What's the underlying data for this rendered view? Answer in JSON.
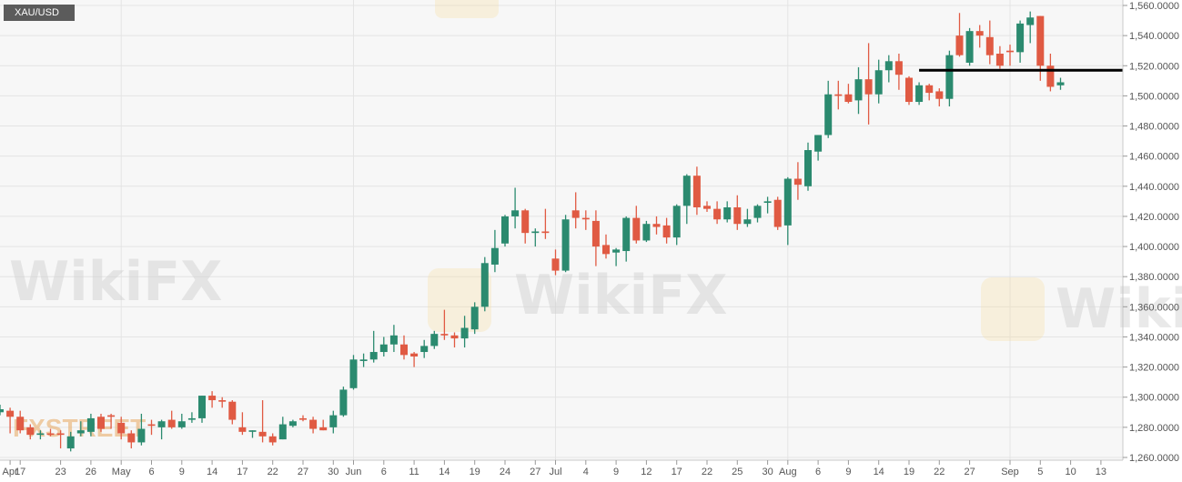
{
  "symbol": "XAU/USD",
  "watermarks": [
    "WikiFX",
    "FXSTREET"
  ],
  "colors": {
    "up": "#2b8a6f",
    "down": "#e05a43",
    "background": "#f7f7f7",
    "grid": "#e4e4e4",
    "resistance_line": "#000000"
  },
  "chart_data": {
    "type": "candlestick",
    "title": "XAU/USD",
    "ylim": [
      1260,
      1560
    ],
    "grid": true,
    "y_axis_position": "right",
    "y_ticks": [
      {
        "value": 1560,
        "label": "1,560.0000"
      },
      {
        "value": 1540,
        "label": "1,540.0000"
      },
      {
        "value": 1520,
        "label": "1,520.0000"
      },
      {
        "value": 1500,
        "label": "1,500.0000"
      },
      {
        "value": 1480,
        "label": "1,480.0000"
      },
      {
        "value": 1460,
        "label": "1,460.0000"
      },
      {
        "value": 1440,
        "label": "1,440.0000"
      },
      {
        "value": 1420,
        "label": "1,420.0000"
      },
      {
        "value": 1400,
        "label": "1,400.0000"
      },
      {
        "value": 1380,
        "label": "1,380.0000"
      },
      {
        "value": 1360,
        "label": "1,360.0000"
      },
      {
        "value": 1340,
        "label": "1,340.0000"
      },
      {
        "value": 1320,
        "label": "1,320.0000"
      },
      {
        "value": 1300,
        "label": "1,300.0000"
      },
      {
        "value": 1280,
        "label": "1,280.0000"
      },
      {
        "value": 1260,
        "label": "1,260.0000"
      }
    ],
    "x_ticks": [
      {
        "label": "Apr",
        "date": "2019-04-16"
      },
      {
        "label": "17",
        "date": "2019-04-17"
      },
      {
        "label": "23",
        "date": "2019-04-23"
      },
      {
        "label": "26",
        "date": "2019-04-26"
      },
      {
        "label": "May",
        "date": "2019-05-01"
      },
      {
        "label": "6",
        "date": "2019-05-06"
      },
      {
        "label": "9",
        "date": "2019-05-09"
      },
      {
        "label": "14",
        "date": "2019-05-14"
      },
      {
        "label": "17",
        "date": "2019-05-17"
      },
      {
        "label": "22",
        "date": "2019-05-22"
      },
      {
        "label": "27",
        "date": "2019-05-27"
      },
      {
        "label": "30",
        "date": "2019-05-30"
      },
      {
        "label": "Jun",
        "date": "2019-06-03"
      },
      {
        "label": "6",
        "date": "2019-06-06"
      },
      {
        "label": "11",
        "date": "2019-06-11"
      },
      {
        "label": "14",
        "date": "2019-06-14"
      },
      {
        "label": "19",
        "date": "2019-06-19"
      },
      {
        "label": "24",
        "date": "2019-06-24"
      },
      {
        "label": "27",
        "date": "2019-06-27"
      },
      {
        "label": "Jul",
        "date": "2019-07-01"
      },
      {
        "label": "4",
        "date": "2019-07-04"
      },
      {
        "label": "9",
        "date": "2019-07-09"
      },
      {
        "label": "12",
        "date": "2019-07-12"
      },
      {
        "label": "17",
        "date": "2019-07-17"
      },
      {
        "label": "22",
        "date": "2019-07-22"
      },
      {
        "label": "25",
        "date": "2019-07-25"
      },
      {
        "label": "30",
        "date": "2019-07-30"
      },
      {
        "label": "Aug",
        "date": "2019-08-01"
      },
      {
        "label": "6",
        "date": "2019-08-06"
      },
      {
        "label": "9",
        "date": "2019-08-09"
      },
      {
        "label": "14",
        "date": "2019-08-14"
      },
      {
        "label": "19",
        "date": "2019-08-19"
      },
      {
        "label": "22",
        "date": "2019-08-22"
      },
      {
        "label": "27",
        "date": "2019-08-27"
      },
      {
        "label": "Sep",
        "date": "2019-09-02"
      },
      {
        "label": "5",
        "date": "2019-09-05"
      },
      {
        "label": "10",
        "date": "2019-09-10"
      },
      {
        "label": "13",
        "date": "2019-09-13"
      }
    ],
    "month_gridlines": [
      "2019-05-01",
      "2019-06-03",
      "2019-07-01",
      "2019-08-01",
      "2019-09-02"
    ],
    "horizontal_line": {
      "value": 1517,
      "from": "2019-08-20"
    },
    "ohlc_fields": [
      "date",
      "open",
      "high",
      "low",
      "close"
    ],
    "candles": [
      [
        "2019-04-15",
        1290,
        1295,
        1288,
        1292
      ],
      [
        "2019-04-16",
        1291,
        1293,
        1276,
        1287
      ],
      [
        "2019-04-17",
        1287,
        1291,
        1276,
        1278
      ],
      [
        "2019-04-18",
        1280,
        1282,
        1272,
        1275
      ],
      [
        "2019-04-19",
        1275,
        1278,
        1272,
        1276
      ],
      [
        "2019-04-22",
        1276,
        1279,
        1274,
        1275
      ],
      [
        "2019-04-23",
        1276,
        1278,
        1266,
        1275
      ],
      [
        "2019-04-24",
        1266,
        1277,
        1264,
        1274
      ],
      [
        "2019-04-25",
        1276,
        1284,
        1274,
        1278
      ],
      [
        "2019-04-26",
        1277,
        1289,
        1274,
        1286
      ],
      [
        "2019-04-29",
        1287,
        1289,
        1277,
        1279
      ],
      [
        "2019-04-30",
        1288,
        1289,
        1279,
        1287
      ],
      [
        "2019-05-01",
        1283,
        1287,
        1272,
        1276
      ],
      [
        "2019-05-02",
        1276,
        1278,
        1266,
        1270
      ],
      [
        "2019-05-03",
        1270,
        1289,
        1268,
        1279
      ],
      [
        "2019-05-06",
        1282,
        1285,
        1275,
        1281
      ],
      [
        "2019-05-07",
        1280,
        1285,
        1272,
        1284
      ],
      [
        "2019-05-08",
        1285,
        1291,
        1279,
        1280
      ],
      [
        "2019-05-09",
        1280,
        1289,
        1279,
        1284
      ],
      [
        "2019-05-10",
        1285,
        1290,
        1283,
        1286
      ],
      [
        "2019-05-13",
        1286,
        1301,
        1283,
        1301
      ],
      [
        "2019-05-14",
        1301,
        1304,
        1293,
        1298
      ],
      [
        "2019-05-15",
        1298,
        1300,
        1293,
        1297
      ],
      [
        "2019-05-16",
        1297,
        1298,
        1282,
        1285
      ],
      [
        "2019-05-17",
        1280,
        1290,
        1275,
        1277
      ],
      [
        "2019-05-20",
        1277,
        1278,
        1273,
        1278
      ],
      [
        "2019-05-21",
        1277,
        1298,
        1270,
        1274
      ],
      [
        "2019-05-22",
        1274,
        1276,
        1268,
        1270
      ],
      [
        "2019-05-23",
        1272,
        1287,
        1272,
        1282
      ],
      [
        "2019-05-24",
        1281,
        1285,
        1280,
        1284
      ],
      [
        "2019-05-27",
        1286,
        1288,
        1284,
        1285
      ],
      [
        "2019-05-28",
        1285,
        1287,
        1276,
        1279
      ],
      [
        "2019-05-29",
        1280,
        1285,
        1278,
        1278
      ],
      [
        "2019-05-30",
        1280,
        1291,
        1276,
        1288
      ],
      [
        "2019-05-31",
        1288,
        1307,
        1287,
        1305
      ],
      [
        "2019-06-03",
        1306,
        1328,
        1305,
        1325
      ],
      [
        "2019-06-04",
        1324,
        1329,
        1320,
        1325
      ],
      [
        "2019-06-05",
        1325,
        1344,
        1323,
        1330
      ],
      [
        "2019-06-06",
        1330,
        1340,
        1327,
        1335
      ],
      [
        "2019-06-07",
        1335,
        1348,
        1330,
        1341
      ],
      [
        "2019-06-10",
        1335,
        1341,
        1325,
        1328
      ],
      [
        "2019-06-11",
        1329,
        1330,
        1320,
        1327
      ],
      [
        "2019-06-12",
        1330,
        1338,
        1326,
        1334
      ],
      [
        "2019-06-13",
        1334,
        1344,
        1332,
        1342
      ],
      [
        "2019-06-14",
        1342,
        1358,
        1338,
        1341
      ],
      [
        "2019-06-17",
        1341,
        1343,
        1333,
        1339
      ],
      [
        "2019-06-18",
        1339,
        1354,
        1333,
        1346
      ],
      [
        "2019-06-19",
        1345,
        1363,
        1342,
        1360
      ],
      [
        "2019-06-20",
        1360,
        1393,
        1357,
        1389
      ],
      [
        "2019-06-21",
        1388,
        1411,
        1383,
        1399
      ],
      [
        "2019-06-24",
        1402,
        1421,
        1400,
        1420
      ],
      [
        "2019-06-25",
        1420,
        1439,
        1412,
        1424
      ],
      [
        "2019-06-26",
        1424,
        1425,
        1402,
        1409
      ],
      [
        "2019-06-27",
        1409,
        1412,
        1400,
        1410
      ],
      [
        "2019-06-28",
        1410,
        1425,
        1405,
        1409
      ],
      [
        "2019-07-01",
        1392,
        1398,
        1381,
        1384
      ],
      [
        "2019-07-02",
        1384,
        1421,
        1383,
        1418
      ],
      [
        "2019-07-03",
        1424,
        1436,
        1412,
        1419
      ],
      [
        "2019-07-04",
        1419,
        1424,
        1411,
        1418
      ],
      [
        "2019-07-05",
        1417,
        1424,
        1387,
        1400
      ],
      [
        "2019-07-08",
        1401,
        1408,
        1392,
        1395
      ],
      [
        "2019-07-09",
        1396,
        1399,
        1387,
        1398
      ],
      [
        "2019-07-10",
        1397,
        1420,
        1390,
        1419
      ],
      [
        "2019-07-11",
        1419,
        1427,
        1402,
        1404
      ],
      [
        "2019-07-12",
        1404,
        1417,
        1403,
        1415
      ],
      [
        "2019-07-15",
        1415,
        1420,
        1408,
        1413
      ],
      [
        "2019-07-16",
        1414,
        1419,
        1402,
        1406
      ],
      [
        "2019-07-17",
        1406,
        1428,
        1401,
        1427
      ],
      [
        "2019-07-18",
        1427,
        1448,
        1415,
        1447
      ],
      [
        "2019-07-19",
        1447,
        1453,
        1421,
        1426
      ],
      [
        "2019-07-22",
        1427,
        1430,
        1423,
        1425
      ],
      [
        "2019-07-23",
        1425,
        1430,
        1415,
        1418
      ],
      [
        "2019-07-24",
        1418,
        1430,
        1416,
        1426
      ],
      [
        "2019-07-25",
        1426,
        1434,
        1411,
        1415
      ],
      [
        "2019-07-26",
        1415,
        1425,
        1413,
        1418
      ],
      [
        "2019-07-29",
        1419,
        1428,
        1416,
        1427
      ],
      [
        "2019-07-30",
        1429,
        1433,
        1422,
        1430
      ],
      [
        "2019-07-31",
        1431,
        1433,
        1411,
        1413
      ],
      [
        "2019-08-01",
        1414,
        1446,
        1401,
        1445
      ],
      [
        "2019-08-02",
        1445,
        1456,
        1431,
        1441
      ],
      [
        "2019-08-05",
        1440,
        1469,
        1437,
        1464
      ],
      [
        "2019-08-06",
        1463,
        1474,
        1457,
        1474
      ],
      [
        "2019-08-07",
        1474,
        1510,
        1472,
        1501
      ],
      [
        "2019-08-08",
        1501,
        1510,
        1491,
        1500
      ],
      [
        "2019-08-09",
        1501,
        1508,
        1495,
        1496
      ],
      [
        "2019-08-12",
        1497,
        1519,
        1488,
        1511
      ],
      [
        "2019-08-13",
        1511,
        1535,
        1481,
        1501
      ],
      [
        "2019-08-14",
        1501,
        1524,
        1495,
        1517
      ],
      [
        "2019-08-15",
        1517,
        1527,
        1509,
        1523
      ],
      [
        "2019-08-16",
        1523,
        1528,
        1504,
        1514
      ],
      [
        "2019-08-19",
        1512,
        1513,
        1494,
        1496
      ],
      [
        "2019-08-20",
        1496,
        1509,
        1494,
        1507
      ],
      [
        "2019-08-21",
        1507,
        1508,
        1497,
        1502
      ],
      [
        "2019-08-22",
        1503,
        1505,
        1493,
        1498
      ],
      [
        "2019-08-23",
        1498,
        1530,
        1493,
        1527
      ],
      [
        "2019-08-26",
        1540,
        1555,
        1526,
        1527
      ],
      [
        "2019-08-27",
        1522,
        1545,
        1520,
        1543
      ],
      [
        "2019-08-28",
        1543,
        1547,
        1532,
        1540
      ],
      [
        "2019-08-29",
        1539,
        1550,
        1521,
        1527
      ],
      [
        "2019-08-30",
        1528,
        1533,
        1518,
        1520
      ],
      [
        "2019-09-02",
        1530,
        1534,
        1520,
        1529
      ],
      [
        "2019-09-03",
        1529,
        1550,
        1522,
        1548
      ],
      [
        "2019-09-04",
        1547,
        1556,
        1535,
        1552
      ],
      [
        "2019-09-05",
        1553,
        1553,
        1510,
        1520
      ],
      [
        "2019-09-06",
        1520,
        1528,
        1503,
        1506
      ],
      [
        "2019-09-09",
        1507,
        1512,
        1504,
        1509
      ]
    ]
  }
}
